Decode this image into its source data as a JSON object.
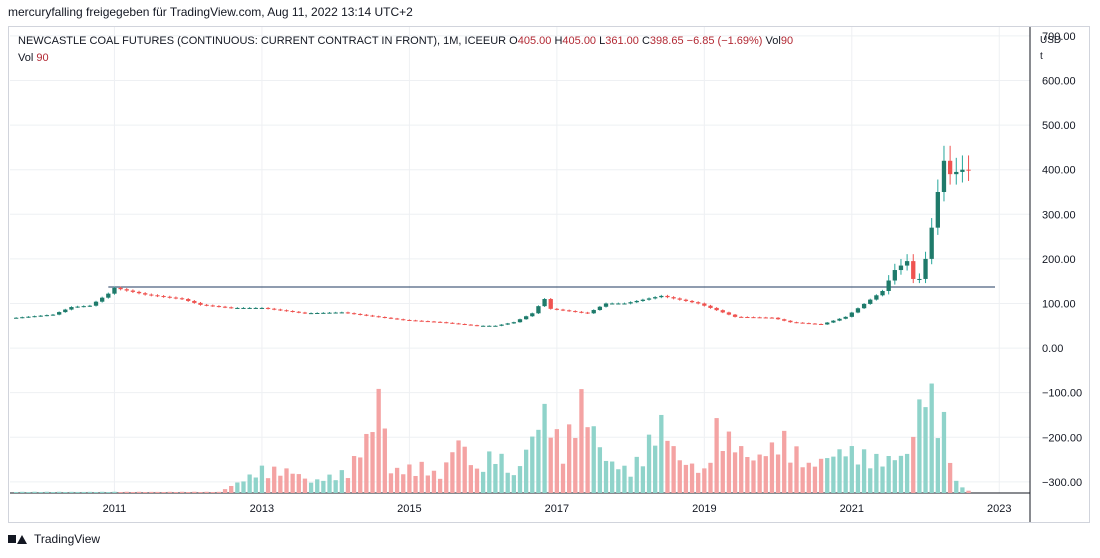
{
  "header": {
    "attribution": "mercuryfalling freigegeben für TradingView.com, Aug 11, 2022 13:14 UTC+2"
  },
  "legend": {
    "symbol": "NEWCASTLE COAL FUTURES (CONTINUOUS: CURRENT CONTRACT IN FRONT), 1M, ICEEUR",
    "o_label": "O",
    "o": "405.00",
    "h_label": "H",
    "h": "405.00",
    "l_label": "L",
    "l": "361.00",
    "c_label": "C",
    "c": "398.65",
    "change": "−6.85 (−1.69%)",
    "vol_label": "Vol",
    "vol": "90",
    "vol2_label": "Vol",
    "vol2": "90"
  },
  "axis": {
    "currency": "USD",
    "unit": "t"
  },
  "footer": {
    "brand": "TradingView"
  },
  "colors": {
    "up": "#26a69a",
    "down": "#ef5350",
    "up_vol": "#8fd3ca",
    "down_vol": "#f4a3a3",
    "grid": "#eef0f3",
    "hline": "#1f3a5f"
  },
  "chart_data": {
    "type": "candlestick",
    "interval": "1M",
    "y_ticks": [
      700,
      600,
      500,
      400,
      300,
      200,
      100,
      0,
      -100,
      -200,
      -300
    ],
    "y_tick_labels": [
      "700.00",
      "600.00",
      "500.00",
      "400.00",
      "300.00",
      "200.00",
      "100.00",
      "0.00",
      "−100.00",
      "−200.00",
      "−300.00"
    ],
    "x_tick_labels": [
      "2011",
      "2013",
      "2015",
      "2017",
      "2019",
      "2021",
      "2023"
    ],
    "ylim": [
      -325,
      720
    ],
    "horizontal_line": 137,
    "anchors": [
      [
        "2009-09",
        68
      ],
      [
        "2010-03",
        75
      ],
      [
        "2010-06",
        92
      ],
      [
        "2010-09",
        95
      ],
      [
        "2010-12",
        122
      ],
      [
        "2011-01",
        135
      ],
      [
        "2011-06",
        120
      ],
      [
        "2011-12",
        110
      ],
      [
        "2012-03",
        97
      ],
      [
        "2012-08",
        90
      ],
      [
        "2013-01",
        90
      ],
      [
        "2013-08",
        78
      ],
      [
        "2014-02",
        80
      ],
      [
        "2014-06",
        73
      ],
      [
        "2014-12",
        63
      ],
      [
        "2015-06",
        58
      ],
      [
        "2015-12",
        50
      ],
      [
        "2016-03",
        50
      ],
      [
        "2016-06",
        58
      ],
      [
        "2016-09",
        78
      ],
      [
        "2016-11",
        110
      ],
      [
        "2016-12",
        88
      ],
      [
        "2017-06",
        78
      ],
      [
        "2017-09",
        100
      ],
      [
        "2017-12",
        100
      ],
      [
        "2018-06",
        117
      ],
      [
        "2018-12",
        100
      ],
      [
        "2019-06",
        70
      ],
      [
        "2019-12",
        68
      ],
      [
        "2020-03",
        58
      ],
      [
        "2020-08",
        53
      ],
      [
        "2020-12",
        70
      ],
      [
        "2021-06",
        128
      ],
      [
        "2021-08",
        175
      ],
      [
        "2021-10",
        195
      ],
      [
        "2021-11",
        155
      ],
      [
        "2021-12",
        155
      ],
      [
        "2022-01",
        200
      ],
      [
        "2022-02",
        270
      ],
      [
        "2022-03",
        350
      ],
      [
        "2022-04",
        420
      ],
      [
        "2022-05",
        390
      ],
      [
        "2022-06",
        395
      ],
      [
        "2022-07",
        400
      ],
      [
        "2022-08",
        398.65
      ]
    ],
    "volume_anchors": [
      [
        "2009-09",
        0.01
      ],
      [
        "2012-06",
        0.01
      ],
      [
        "2012-10",
        0.12
      ],
      [
        "2013-01",
        0.22
      ],
      [
        "2013-06",
        0.2
      ],
      [
        "2013-09",
        0.1
      ],
      [
        "2014-03",
        0.2
      ],
      [
        "2014-07",
        0.6
      ],
      [
        "2014-08",
        0.95
      ],
      [
        "2014-10",
        0.2
      ],
      [
        "2015-03",
        0.25
      ],
      [
        "2015-06",
        0.15
      ],
      [
        "2015-09",
        0.5
      ],
      [
        "2015-12",
        0.2
      ],
      [
        "2016-03",
        0.4
      ],
      [
        "2016-06",
        0.15
      ],
      [
        "2016-11",
        0.75
      ],
      [
        "2017-02",
        0.4
      ],
      [
        "2017-05",
        0.85
      ],
      [
        "2017-09",
        0.3
      ],
      [
        "2018-01",
        0.2
      ],
      [
        "2018-06",
        0.65
      ],
      [
        "2018-09",
        0.3
      ],
      [
        "2019-01",
        0.2
      ],
      [
        "2019-03",
        0.6
      ],
      [
        "2019-09",
        0.3
      ],
      [
        "2020-02",
        0.5
      ],
      [
        "2020-06",
        0.25
      ],
      [
        "2020-12",
        0.4
      ],
      [
        "2021-06",
        0.3
      ],
      [
        "2021-10",
        0.35
      ],
      [
        "2022-01",
        1.0
      ],
      [
        "2022-04",
        0.65
      ],
      [
        "2022-06",
        0.1
      ],
      [
        "2022-08",
        0.02
      ]
    ]
  }
}
